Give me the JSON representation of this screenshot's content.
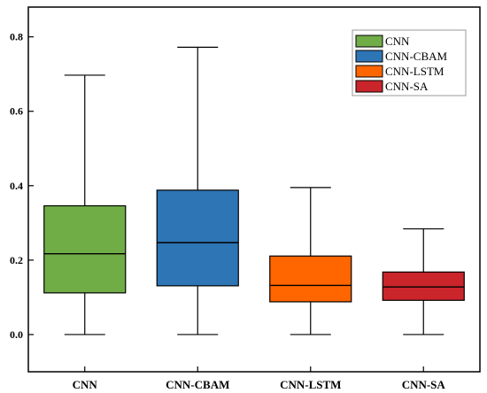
{
  "chart_data": {
    "type": "box",
    "categories": [
      "CNN",
      "CNN-CBAM",
      "CNN-LSTM",
      "CNN-SA"
    ],
    "series": [
      {
        "name": "CNN",
        "color": "#70ad47",
        "whisker_low": 0.0,
        "q1": 0.112,
        "median": 0.217,
        "q3": 0.346,
        "whisker_high": 0.697
      },
      {
        "name": "CNN-CBAM",
        "color": "#2e75b6",
        "whisker_low": 0.0,
        "q1": 0.131,
        "median": 0.247,
        "q3": 0.388,
        "whisker_high": 0.772
      },
      {
        "name": "CNN-LSTM",
        "color": "#ff6600",
        "whisker_low": 0.0,
        "q1": 0.088,
        "median": 0.132,
        "q3": 0.211,
        "whisker_high": 0.395
      },
      {
        "name": "CNN-SA",
        "color": "#c9252b",
        "whisker_low": 0.0,
        "q1": 0.092,
        "median": 0.128,
        "q3": 0.168,
        "whisker_high": 0.284
      }
    ],
    "y_ticks": [
      "0.0",
      "0.2",
      "0.4",
      "0.6",
      "0.8"
    ],
    "ylim": [
      -0.1,
      0.88
    ],
    "grid": false,
    "legend_position": "top-right",
    "title": "",
    "xlabel": "",
    "ylabel": ""
  }
}
